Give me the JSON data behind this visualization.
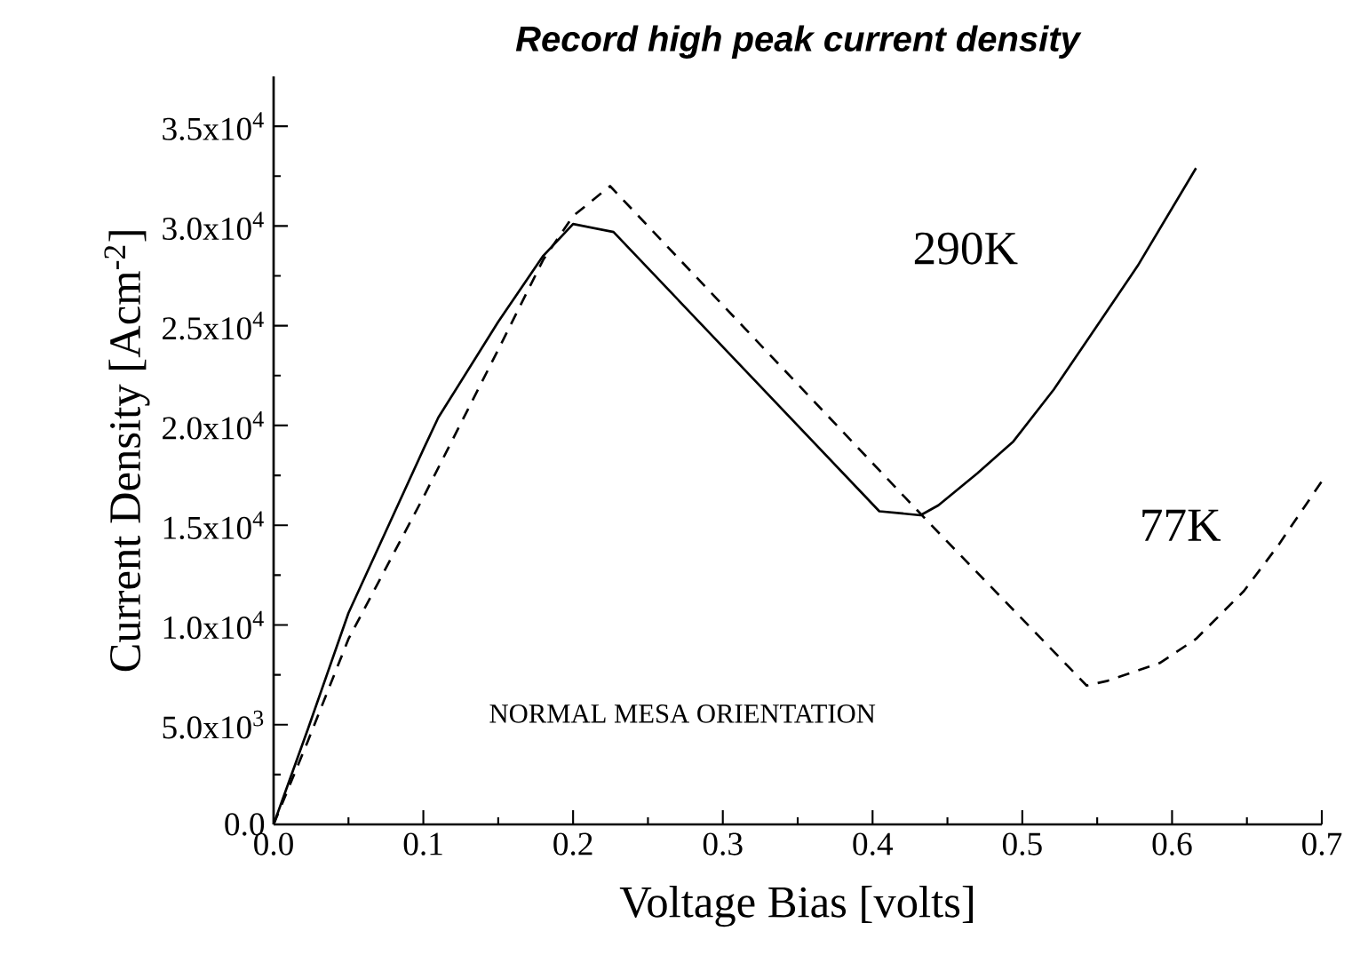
{
  "chart_data": {
    "type": "line",
    "title": "**Record high peak current density**",
    "xlabel": "Voltage Bias [volts]",
    "ylabel": "Current Density [Acm$^{-2}$]",
    "xlim": [
      0,
      0.7
    ],
    "ylim": [
      0,
      37500
    ],
    "xticks": [
      {
        "value": 0,
        "label": "0.0"
      },
      0.1,
      0.2,
      0.3,
      0.4,
      0.5,
      0.6,
      0.7
    ],
    "yticks": [
      {
        "value": 0,
        "label": "0.0"
      },
      {
        "value": 5000,
        "label": "5.0x10$^{3}$"
      },
      {
        "value": 10000,
        "label": "1.0x10$^{4}$"
      },
      {
        "value": 15000,
        "label": "1.5x10$^{4}$"
      },
      {
        "value": 20000,
        "label": "2.0x10$^{4}$"
      },
      {
        "value": 25000,
        "label": "2.5x10$^{4}$"
      },
      {
        "value": 30000,
        "label": "3.0x10$^{4}$"
      },
      {
        "value": 35000,
        "label": "3.5x10$^{4}$"
      }
    ],
    "annotations": [
      "NORMAL MESA ORIENTATION"
    ],
    "series": [
      {
        "name": "290K",
        "color": "#000000",
        "line_style": "solid",
        "x": [
          0,
          0.023,
          0.05,
          0.1,
          0.11,
          0.15,
          0.18,
          0.2,
          0.227,
          0.4045,
          0.432,
          0.444,
          0.47,
          0.494,
          0.521,
          0.549,
          0.577,
          0.616
        ],
        "values": [
          0,
          4800,
          10600,
          18800,
          20400,
          25200,
          28500,
          30100,
          29700,
          15700,
          15500,
          16000,
          17600,
          19200,
          21800,
          24900,
          28000,
          32900
        ]
      },
      {
        "name": "77K",
        "color": "#000000",
        "line_style": "dashed",
        "x": [
          0,
          0.023,
          0.05,
          0.1,
          0.15,
          0.18,
          0.2,
          0.2247,
          0.438,
          0.543,
          0.557,
          0.592,
          0.616,
          0.648,
          0.671,
          0.7
        ],
        "values": [
          0,
          4200,
          9300,
          16400,
          23800,
          28300,
          30500,
          32000,
          15100,
          6960,
          7200,
          8100,
          9300,
          11700,
          14000,
          17200
        ]
      }
    ]
  }
}
